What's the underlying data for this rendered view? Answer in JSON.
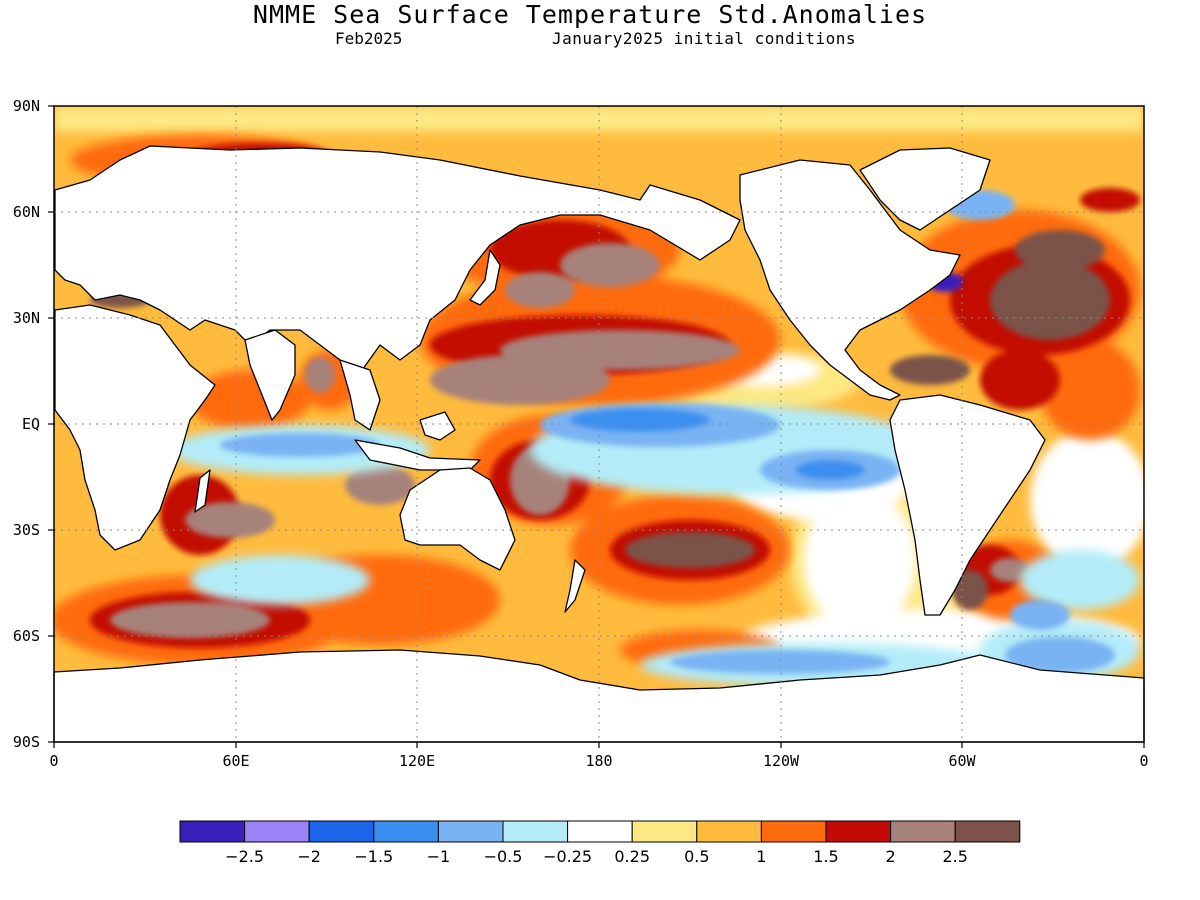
{
  "header": {
    "title": "NMME Sea Surface Temperature Std.Anomalies",
    "target_month": "Feb2025",
    "initial_conditions": "January2025 initial conditions"
  },
  "map": {
    "lat_labels": [
      "90N",
      "60N",
      "30N",
      "EQ",
      "30S",
      "60S",
      "90S"
    ],
    "lon_labels": [
      "0",
      "60E",
      "120E",
      "180",
      "120W",
      "60W",
      "0"
    ],
    "land_color": "#ffffff",
    "coastline_color": "#000000",
    "grid_dotted": true
  },
  "colorbar": {
    "colors": [
      "#3a1fbd",
      "#9b83f7",
      "#1c64e8",
      "#3b8ff0",
      "#79b3f3",
      "#b3ecf8",
      "#ffffff",
      "#fde882",
      "#ffbb3d",
      "#ff6a0c",
      "#c20b06",
      "#a7827a",
      "#7c524a"
    ],
    "labels": [
      "-2.5",
      "-2",
      "-1.5",
      "-1",
      "-0.5",
      "-0.25",
      "0.25",
      "0.5",
      "1",
      "1.5",
      "2",
      "2.5"
    ]
  }
}
